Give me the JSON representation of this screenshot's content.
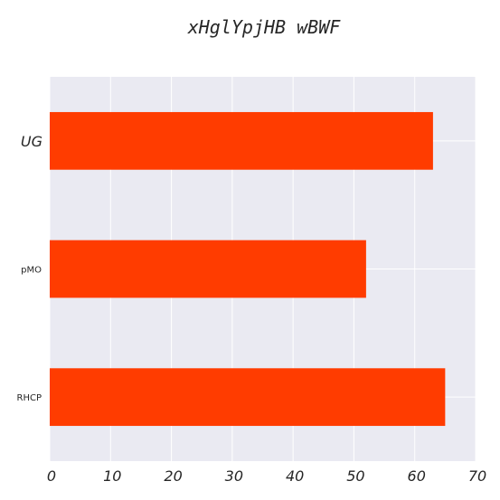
{
  "chart_data": {
    "type": "bar",
    "orientation": "horizontal",
    "title": "xHglYpjHB wBWF",
    "xlabel": "",
    "ylabel": "",
    "categories": [
      "UG",
      "pMO",
      "RHCP"
    ],
    "values": [
      63,
      52,
      65
    ],
    "xlim": [
      0,
      70
    ],
    "xticks": [
      0,
      10,
      20,
      30,
      40,
      50,
      60,
      70
    ],
    "grid": true,
    "bar_color": "#ff3c00",
    "background_color": "#eaeaf2",
    "grid_color": "#ffffff"
  }
}
